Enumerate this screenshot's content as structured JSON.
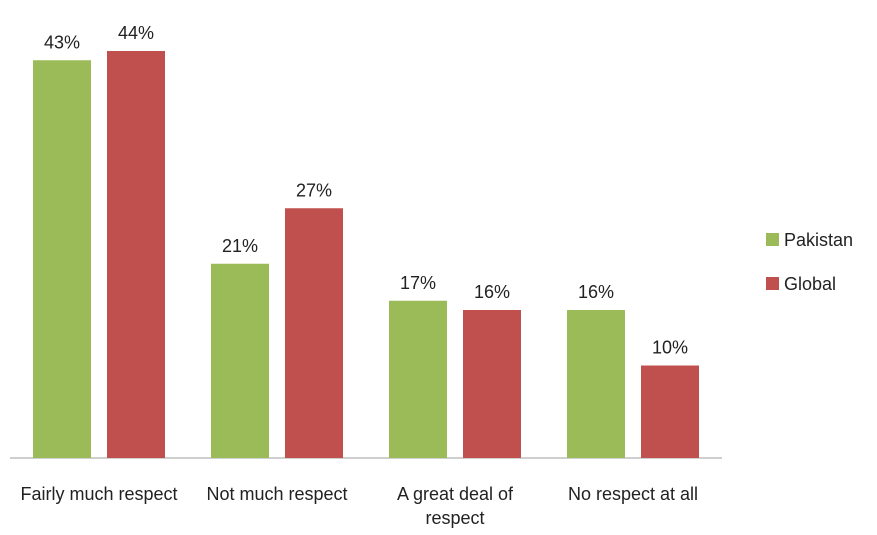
{
  "chart_data": {
    "type": "bar",
    "categories": [
      "Fairly much respect",
      "Not much respect",
      "A great deal of respect",
      "No respect at all"
    ],
    "series": [
      {
        "name": "Pakistan",
        "color": "#9bbb59",
        "values": [
          43,
          21,
          17,
          16
        ],
        "value_labels": [
          "43%",
          "21%",
          "17%",
          "16%"
        ]
      },
      {
        "name": "Global",
        "color": "#c0504d",
        "values": [
          44,
          27,
          16,
          10
        ],
        "value_labels": [
          "44%",
          "27%",
          "16%",
          "10%"
        ]
      }
    ],
    "legend": "right"
  }
}
